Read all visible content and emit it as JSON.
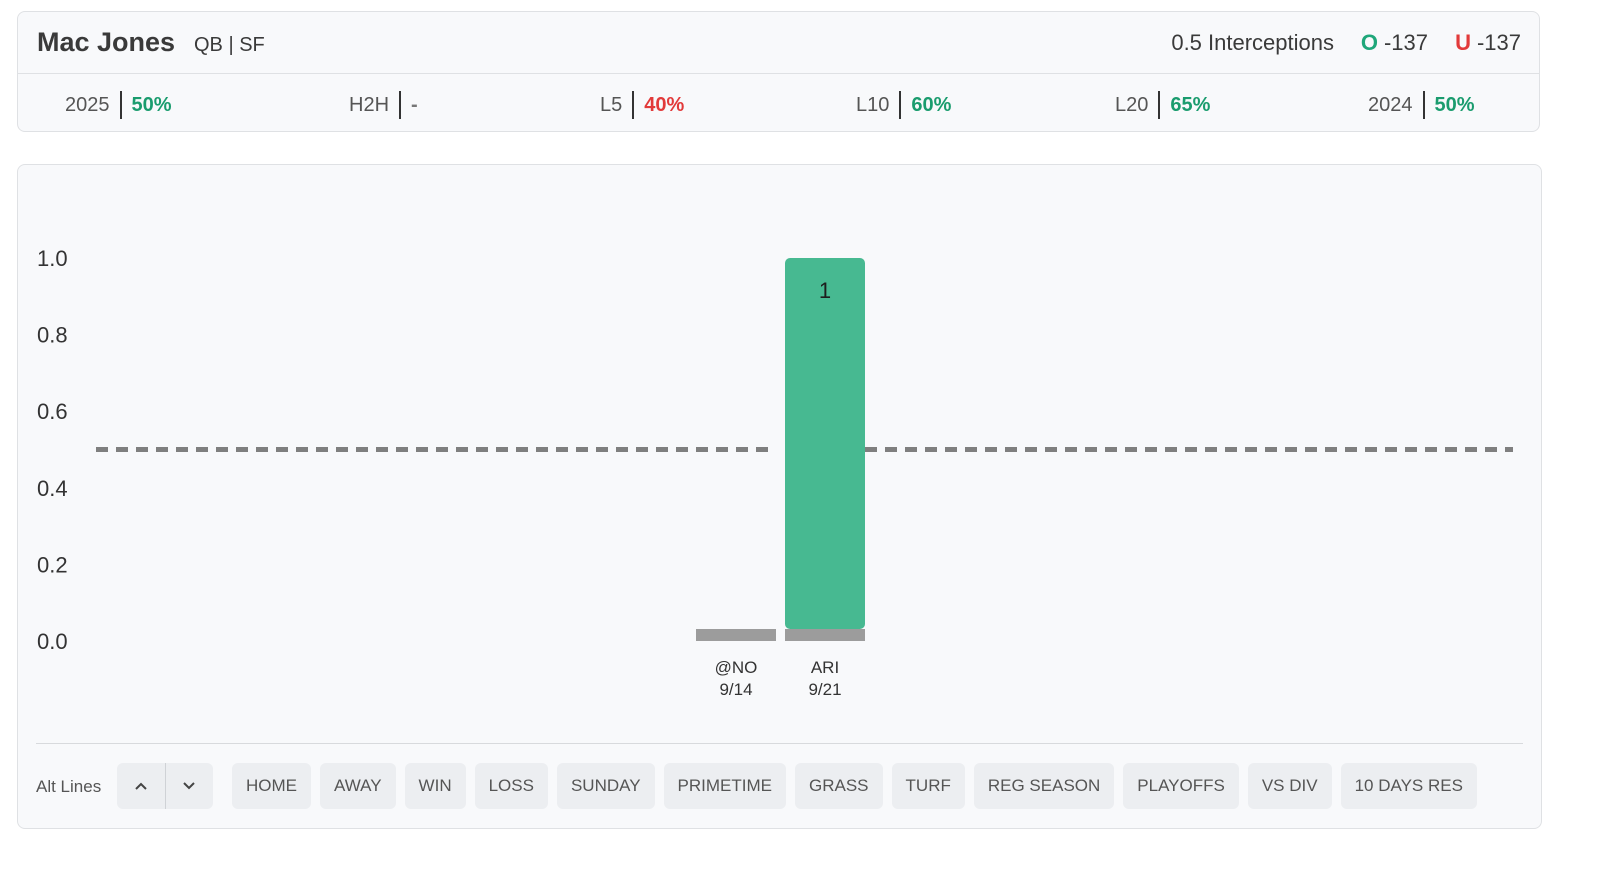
{
  "player": {
    "name": "Mac Jones",
    "position_team": "QB | SF"
  },
  "prop": {
    "line": "0.5 Interceptions",
    "over": {
      "mark": "O",
      "odds": "-137"
    },
    "under": {
      "mark": "U",
      "odds": "-137"
    }
  },
  "stats": [
    {
      "label": "2025",
      "value": "50%",
      "tone": "green"
    },
    {
      "label": "H2H",
      "value": "-",
      "tone": "none"
    },
    {
      "label": "L5",
      "value": "40%",
      "tone": "red"
    },
    {
      "label": "L10",
      "value": "60%",
      "tone": "green"
    },
    {
      "label": "L20",
      "value": "65%",
      "tone": "green"
    },
    {
      "label": "2024",
      "value": "50%",
      "tone": "green"
    }
  ],
  "colors": {
    "hit": "#47b991",
    "miss": "#9c9c9c",
    "line": "#7f7f7f",
    "green": "#1a9c6e",
    "red": "#e23a3a"
  },
  "chart_data": {
    "type": "bar",
    "ylim": [
      0,
      1.0
    ],
    "yticks": [
      "1.0",
      "0.8",
      "0.6",
      "0.4",
      "0.2",
      "0.0"
    ],
    "ytick_values": [
      1.0,
      0.8,
      0.6,
      0.4,
      0.2,
      0.0
    ],
    "threshold": 0.5,
    "grid": false,
    "categories": [
      {
        "opponent": "@NO",
        "date": "9/14"
      },
      {
        "opponent": "ARI",
        "date": "9/21"
      }
    ],
    "values": [
      0,
      1
    ],
    "data_labels": [
      "",
      "1"
    ]
  },
  "toolbar": {
    "alt_lines_label": "Alt Lines",
    "up_icon": "chevron-up-icon",
    "down_icon": "chevron-down-icon",
    "filters": [
      "HOME",
      "AWAY",
      "WIN",
      "LOSS",
      "SUNDAY",
      "PRIMETIME",
      "GRASS",
      "TURF",
      "REG SEASON",
      "PLAYOFFS",
      "VS DIV",
      "10 DAYS RES"
    ]
  }
}
